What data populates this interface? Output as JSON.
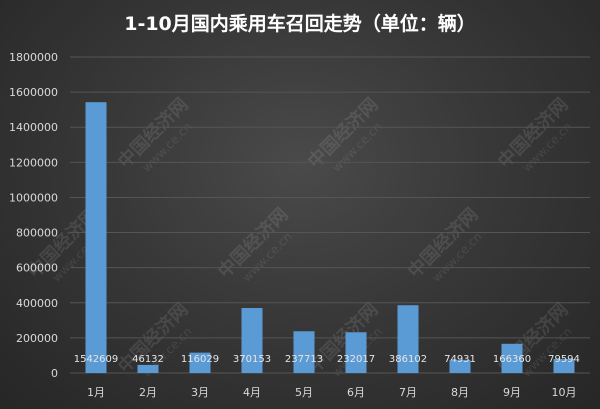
{
  "chart_data": {
    "type": "bar",
    "title": "1-10月国内乘用车召回走势（单位：辆）",
    "categories": [
      "1月",
      "2月",
      "3月",
      "4月",
      "5月",
      "6月",
      "7月",
      "8月",
      "9月",
      "10月"
    ],
    "values": [
      1542609,
      46132,
      116029,
      370153,
      237713,
      232017,
      386102,
      74931,
      166360,
      79594
    ],
    "data_labels": [
      "1542609",
      "46132",
      "116029",
      "370153",
      "237713",
      "232017",
      "386102",
      "74931",
      "166360",
      "79594"
    ],
    "ylim": [
      0,
      1800000
    ],
    "yticks": [
      "0",
      "200000",
      "400000",
      "600000",
      "800000",
      "1000000",
      "1200000",
      "1400000",
      "1600000",
      "1800000"
    ],
    "ytick_values": [
      0,
      200000,
      400000,
      600000,
      800000,
      1000000,
      1200000,
      1400000,
      1600000,
      1800000
    ],
    "grid": true,
    "legend": "none",
    "colors": {
      "bar": "#5b9bd5",
      "grid": "#555555",
      "background": "#333333"
    }
  },
  "watermark": {
    "logo": "中国经济网",
    "url": "www.ce.cn"
  }
}
